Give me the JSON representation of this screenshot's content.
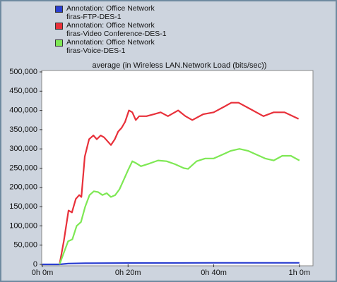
{
  "chart_data": {
    "type": "line",
    "title": "average (in Wireless LAN.Network Load (bits/sec))",
    "xlim": [
      0,
      63
    ],
    "ylim": [
      0,
      500000
    ],
    "xticks": [
      {
        "value": 0,
        "label": "0h 0m"
      },
      {
        "value": 20,
        "label": "0h 20m"
      },
      {
        "value": 40,
        "label": "0h 40m"
      },
      {
        "value": 60,
        "label": "1h 0m"
      }
    ],
    "yticks": [
      0,
      {
        "value": 50000,
        "label": "50,000"
      },
      {
        "value": 100000,
        "label": "100,000"
      },
      {
        "value": 150000,
        "label": "150,000"
      },
      {
        "value": 200000,
        "label": "200,000"
      },
      {
        "value": 250000,
        "label": "250,000"
      },
      {
        "value": 300000,
        "label": "300,000"
      },
      {
        "value": 350000,
        "label": "350,000"
      },
      {
        "value": 400000,
        "label": "400,000"
      },
      {
        "value": 450000,
        "label": "450,000"
      },
      {
        "value": 500000,
        "label": "500,000"
      }
    ],
    "grid": false,
    "series": [
      {
        "name": "Annotation: Office Network\nfiras-FTP-DES-1",
        "color": "#2b3fd0",
        "x": [
          0,
          4,
          6,
          10,
          20,
          40,
          60
        ],
        "values": [
          0,
          0,
          2000,
          3000,
          3500,
          4000,
          4000
        ]
      },
      {
        "name": "Annotation: Office Network\nfiras-Video Conference-DES-1",
        "color": "#e8303a",
        "x": [
          4,
          5,
          6.1,
          6.9,
          7.8,
          8.6,
          9.1,
          9.9,
          10.9,
          11.9,
          12.7,
          13.6,
          14.4,
          15.2,
          16,
          16.9,
          17.7,
          18.5,
          19.3,
          20.2,
          21,
          21.8,
          22.6,
          24.3,
          26,
          27.6,
          29.3,
          31.7,
          33.4,
          35,
          37.5,
          40,
          42.5,
          44.1,
          45.8,
          48.3,
          51.6,
          54,
          56.5,
          59.8
        ],
        "values": [
          0,
          60000,
          140000,
          135000,
          170000,
          180000,
          175000,
          280000,
          325000,
          335000,
          325000,
          335000,
          330000,
          320000,
          310000,
          325000,
          345000,
          355000,
          370000,
          400000,
          395000,
          375000,
          385000,
          385000,
          390000,
          395000,
          385000,
          400000,
          385000,
          375000,
          390000,
          395000,
          410000,
          420000,
          420000,
          405000,
          385000,
          395000,
          395000,
          378000
        ]
      },
      {
        "name": "Annotation: Office Network\nfiras-Voice-DES-1",
        "color": "#7ee854",
        "x": [
          4,
          5,
          6,
          7,
          8,
          9,
          10,
          11,
          12,
          13,
          14,
          15,
          16,
          17,
          18,
          19,
          20,
          21,
          22,
          23,
          25,
          27,
          29,
          31,
          33,
          34,
          36,
          38,
          40,
          42,
          44,
          46,
          48,
          50,
          52,
          54,
          56,
          58,
          60
        ],
        "values": [
          0,
          30000,
          60000,
          65000,
          100000,
          110000,
          150000,
          180000,
          190000,
          188000,
          180000,
          185000,
          175000,
          180000,
          195000,
          220000,
          245000,
          268000,
          262000,
          255000,
          262000,
          270000,
          268000,
          260000,
          250000,
          248000,
          268000,
          275000,
          275000,
          285000,
          295000,
          300000,
          295000,
          285000,
          275000,
          270000,
          282000,
          282000,
          270000
        ]
      }
    ]
  }
}
